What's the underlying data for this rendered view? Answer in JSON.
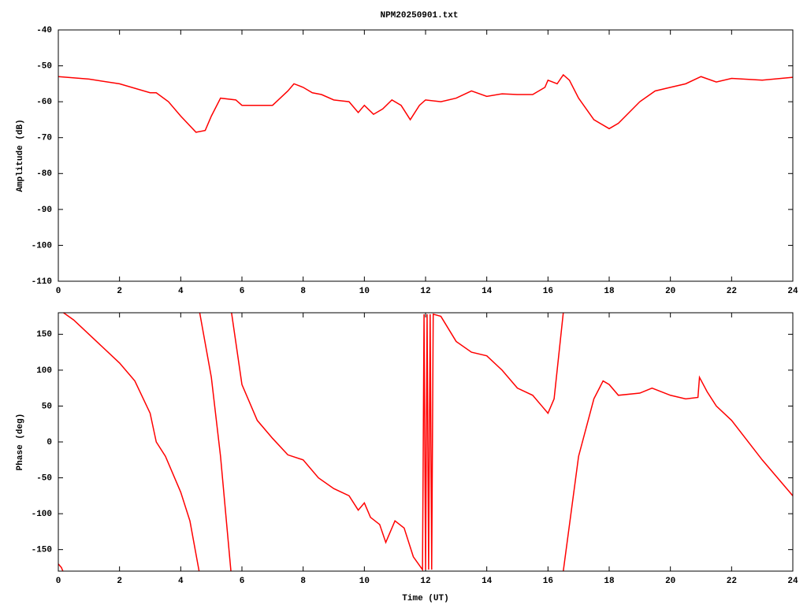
{
  "chart_data": [
    {
      "type": "line",
      "title": "NPM20250901.txt",
      "ylabel": "Amplitude (dB)",
      "xlim": [
        0,
        24
      ],
      "ylim": [
        -110,
        -40
      ],
      "xticks": [
        0,
        2,
        4,
        6,
        8,
        10,
        12,
        14,
        16,
        18,
        20,
        22,
        24
      ],
      "yticks": [
        -110,
        -100,
        -90,
        -80,
        -70,
        -60,
        -50,
        -40
      ],
      "color": "#ff0000",
      "x": [
        0,
        1,
        2,
        3,
        3.2,
        3.6,
        4,
        4.5,
        4.8,
        5,
        5.3,
        5.8,
        6,
        6.5,
        7,
        7.5,
        7.7,
        8,
        8.3,
        8.6,
        9,
        9.5,
        9.8,
        10,
        10.3,
        10.6,
        10.9,
        11.2,
        11.5,
        11.8,
        12,
        12.5,
        13,
        13.5,
        14,
        14.5,
        15,
        15.5,
        15.9,
        16,
        16.3,
        16.5,
        16.7,
        17,
        17.5,
        18,
        18.3,
        19,
        19.5,
        20,
        20.5,
        21,
        21.5,
        22,
        23,
        24
      ],
      "values": [
        -53,
        -53.7,
        -55,
        -57.5,
        -57.5,
        -60,
        -64,
        -68.5,
        -68,
        -64,
        -59,
        -59.5,
        -61,
        -61,
        -61,
        -57,
        -55,
        -56,
        -57.5,
        -58,
        -59.5,
        -60,
        -63,
        -61,
        -63.5,
        -62,
        -59.5,
        -61,
        -65,
        -61,
        -59.5,
        -60,
        -59,
        -57,
        -58.5,
        -57.8,
        -58,
        -58,
        -56,
        -54,
        -55,
        -52.5,
        -54,
        -59,
        -65,
        -67.5,
        -66,
        -60,
        -57,
        -56,
        -55,
        -53,
        -54.5,
        -53.5,
        -54,
        -53.2
      ]
    },
    {
      "type": "line",
      "ylabel": "Phase (deg)",
      "xlabel": "Time (UT)",
      "xlim": [
        0,
        24
      ],
      "ylim": [
        -180,
        180
      ],
      "xticks": [
        0,
        2,
        4,
        6,
        8,
        10,
        12,
        14,
        16,
        18,
        20,
        22,
        24
      ],
      "yticks": [
        -150,
        -100,
        -50,
        0,
        50,
        100,
        150
      ],
      "color": "#ff0000",
      "x": [
        0,
        0.1,
        0.15,
        0.16,
        0.17,
        0.5,
        1,
        2,
        2.5,
        3,
        3.2,
        3.5,
        4,
        4.3,
        4.6,
        4.6,
        4.62,
        5,
        5.3,
        5.64,
        5.64,
        5.66,
        6,
        6.5,
        7,
        7.5,
        8,
        8.5,
        9,
        9.5,
        9.8,
        10,
        10.2,
        10.5,
        10.7,
        11,
        11.3,
        11.6,
        11.9,
        11.95,
        12,
        12.05,
        12.1,
        12.15,
        12.2,
        12.25,
        12.5,
        13,
        13.5,
        14,
        14.5,
        15,
        15.5,
        15.8,
        16,
        16.2,
        16.5,
        16.5,
        16.5,
        17,
        17.5,
        17.8,
        18,
        18.3,
        19,
        19.4,
        20,
        20.5,
        20.9,
        20.95,
        21.2,
        21.5,
        22,
        23,
        24
      ],
      "values": [
        -170,
        -175,
        -180,
        null,
        180,
        170,
        150,
        110,
        85,
        40,
        0,
        -20,
        -70,
        -110,
        -180,
        null,
        180,
        90,
        -20,
        -180,
        null,
        180,
        80,
        30,
        5,
        -18,
        -25,
        -50,
        -65,
        -75,
        -95,
        -85,
        -105,
        -115,
        -140,
        -110,
        -120,
        -160,
        -178,
        178,
        -178,
        178,
        -178,
        178,
        -178,
        178,
        175,
        140,
        125,
        120,
        100,
        75,
        65,
        50,
        40,
        60,
        180,
        null,
        -180,
        -20,
        60,
        85,
        80,
        65,
        68,
        75,
        65,
        60,
        62,
        90,
        70,
        50,
        30,
        -25,
        -75
      ]
    }
  ]
}
